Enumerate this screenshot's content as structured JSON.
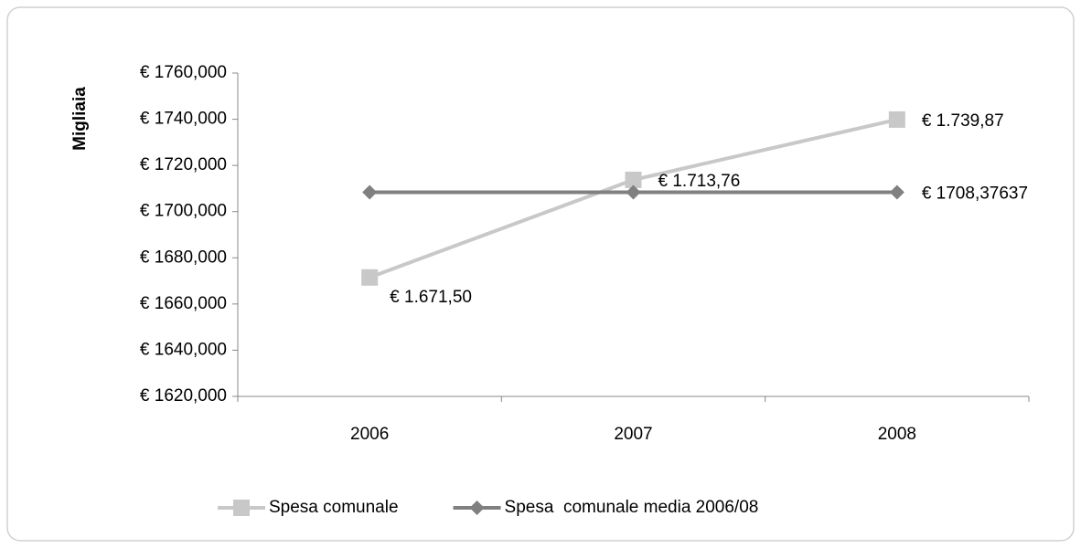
{
  "chart_data": {
    "type": "line",
    "y_label": "Migliaia",
    "categories": [
      "2006",
      "2007",
      "2008"
    ],
    "series": [
      {
        "name": "Spesa comunale",
        "color": "#c8c8c8",
        "marker": "square",
        "values": [
          1671.5,
          1713.76,
          1739.87
        ],
        "value_labels": [
          "€ 1.671,50",
          "€ 1.713,76",
          "€ 1.739,87"
        ]
      },
      {
        "name": "Spesa  comunale media 2006/08",
        "color": "#808080",
        "marker": "diamond",
        "values": [
          1708.37637,
          1708.37637,
          1708.37637
        ],
        "value_labels": [
          null,
          null,
          "€ 1708,37637"
        ]
      }
    ],
    "ylim": [
      1620,
      1760
    ],
    "yticks": [
      {
        "value": 1620,
        "label": "€ 1620,000"
      },
      {
        "value": 1640,
        "label": "€ 1640,000"
      },
      {
        "value": 1660,
        "label": "€ 1660,000"
      },
      {
        "value": 1680,
        "label": "€ 1680,000"
      },
      {
        "value": 1700,
        "label": "€ 1700,000"
      },
      {
        "value": 1720,
        "label": "€ 1720,000"
      },
      {
        "value": 1740,
        "label": "€ 1740,000"
      },
      {
        "value": 1760,
        "label": "€ 1760,000"
      }
    ],
    "grid": false,
    "legend": "bottom"
  }
}
